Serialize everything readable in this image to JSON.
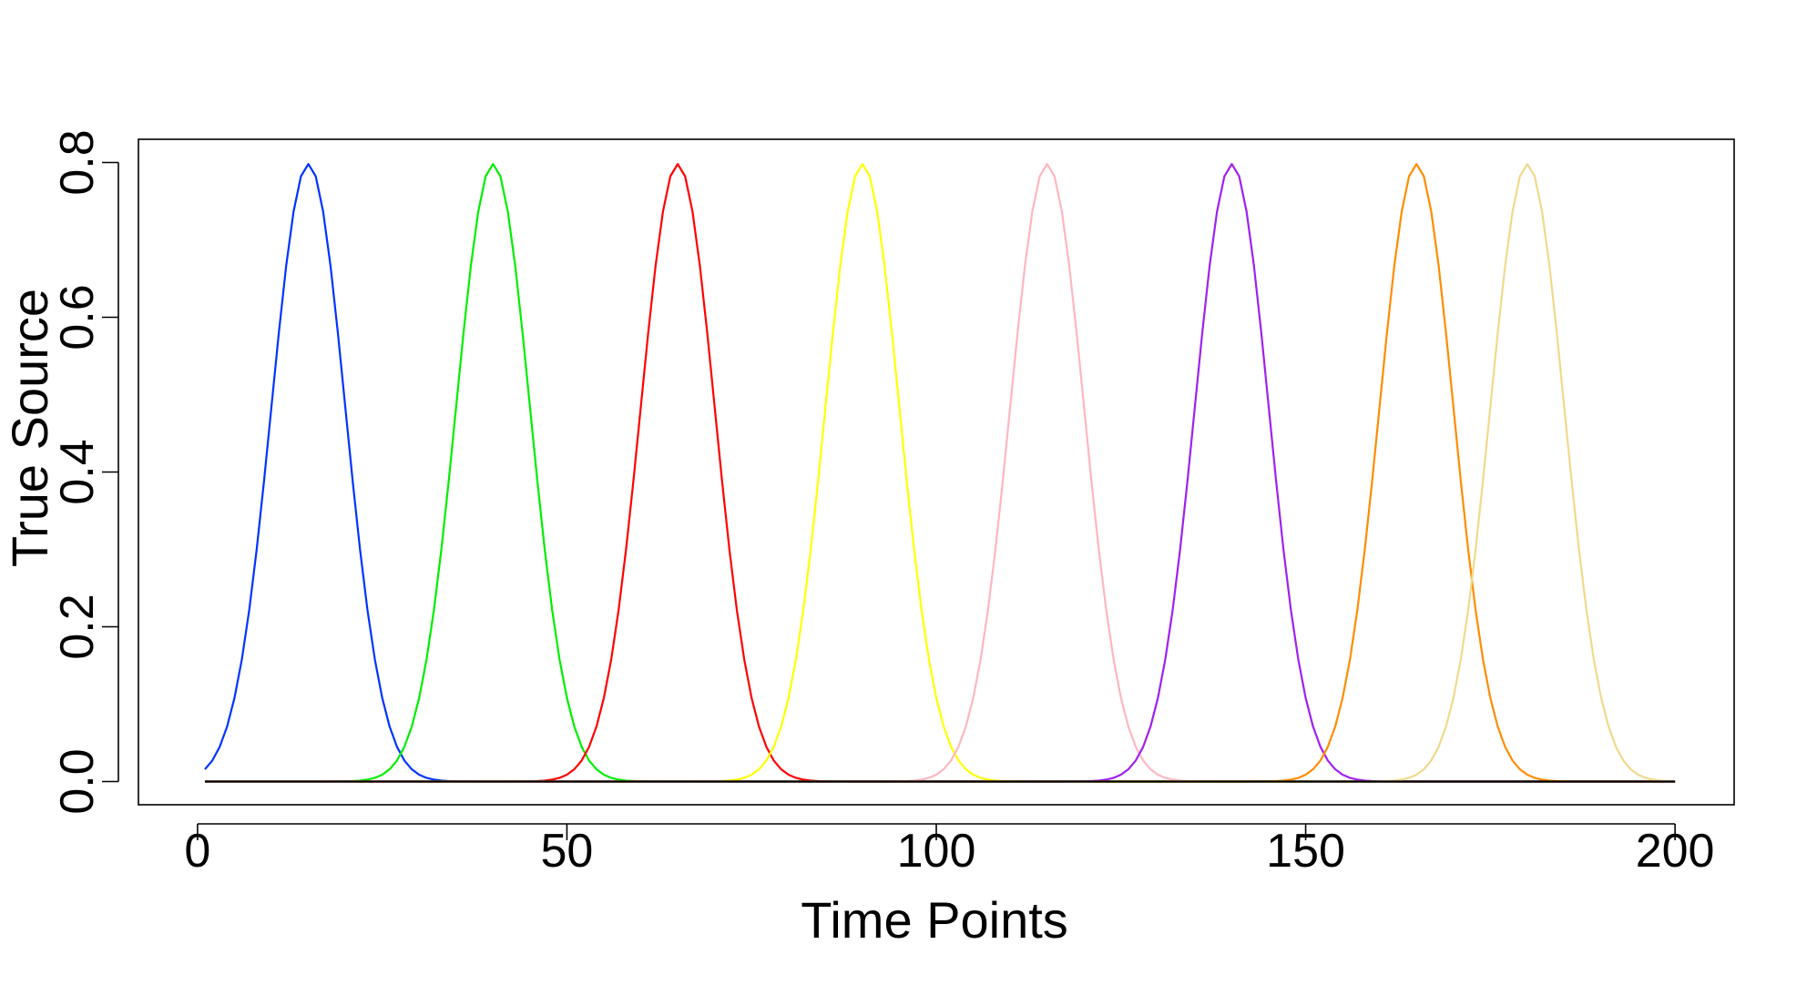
{
  "chart_data": {
    "type": "line",
    "xlabel": "Time Points",
    "ylabel": "True Source",
    "xlim": [
      -8,
      208
    ],
    "ylim": [
      -0.03,
      0.83
    ],
    "x_ticks": [
      0,
      50,
      100,
      150,
      200
    ],
    "x_tick_labels": [
      "0",
      "50",
      "100",
      "150",
      "200"
    ],
    "y_ticks": [
      0.0,
      0.2,
      0.4,
      0.6,
      0.8
    ],
    "y_tick_labels": [
      "0.0",
      "0.2",
      "0.4",
      "0.6",
      "0.8"
    ],
    "grid": false,
    "x_range": [
      1,
      200
    ],
    "peak_value": 0.798,
    "curve_width_sd": 5,
    "series": [
      {
        "peak_x": 15,
        "color": "#0033ff"
      },
      {
        "peak_x": 40,
        "color": "#00ee00"
      },
      {
        "peak_x": 65,
        "color": "#ff0000"
      },
      {
        "peak_x": 90,
        "color": "#ffff00"
      },
      {
        "peak_x": 115,
        "color": "#ffb6c1"
      },
      {
        "peak_x": 140,
        "color": "#a020f0"
      },
      {
        "peak_x": 165,
        "color": "#ff8c00"
      },
      {
        "peak_x": 180,
        "color": "#f0d98c"
      }
    ],
    "baseline": {
      "y": 0.0,
      "x_range": [
        1,
        200
      ],
      "color": "#000000"
    }
  }
}
